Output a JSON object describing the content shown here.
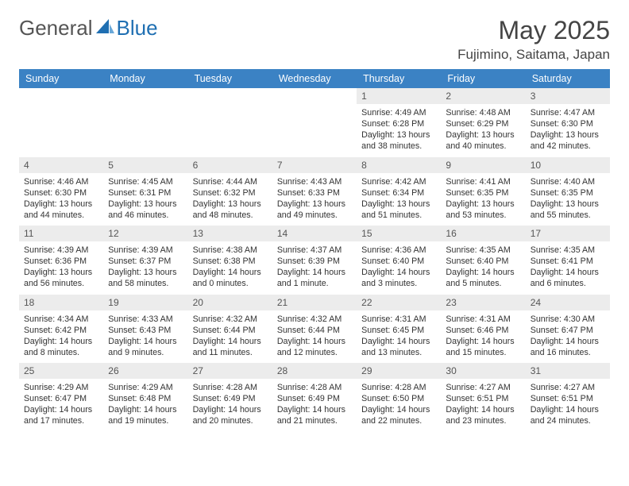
{
  "brand": {
    "word1": "General",
    "word2": "Blue"
  },
  "title": "May 2025",
  "location": "Fujimino, Saitama, Japan",
  "colors": {
    "header_bg": "#3b82c4",
    "header_text": "#ffffff",
    "daynum_bg": "#ececec",
    "body_text": "#333333",
    "title_text": "#444444",
    "page_bg": "#ffffff",
    "brand_blue": "#1f6fb2"
  },
  "typography": {
    "month_title_pt": 32,
    "location_pt": 17,
    "dow_pt": 12.5,
    "daynum_pt": 12,
    "daydata_pt": 10.7,
    "logo_pt": 26
  },
  "days_of_week": [
    "Sunday",
    "Monday",
    "Tuesday",
    "Wednesday",
    "Thursday",
    "Friday",
    "Saturday"
  ],
  "weeks": [
    [
      null,
      null,
      null,
      null,
      {
        "n": "1",
        "sr": "4:49 AM",
        "ss": "6:28 PM",
        "dl": "13 hours and 38 minutes."
      },
      {
        "n": "2",
        "sr": "4:48 AM",
        "ss": "6:29 PM",
        "dl": "13 hours and 40 minutes."
      },
      {
        "n": "3",
        "sr": "4:47 AM",
        "ss": "6:30 PM",
        "dl": "13 hours and 42 minutes."
      }
    ],
    [
      {
        "n": "4",
        "sr": "4:46 AM",
        "ss": "6:30 PM",
        "dl": "13 hours and 44 minutes."
      },
      {
        "n": "5",
        "sr": "4:45 AM",
        "ss": "6:31 PM",
        "dl": "13 hours and 46 minutes."
      },
      {
        "n": "6",
        "sr": "4:44 AM",
        "ss": "6:32 PM",
        "dl": "13 hours and 48 minutes."
      },
      {
        "n": "7",
        "sr": "4:43 AM",
        "ss": "6:33 PM",
        "dl": "13 hours and 49 minutes."
      },
      {
        "n": "8",
        "sr": "4:42 AM",
        "ss": "6:34 PM",
        "dl": "13 hours and 51 minutes."
      },
      {
        "n": "9",
        "sr": "4:41 AM",
        "ss": "6:35 PM",
        "dl": "13 hours and 53 minutes."
      },
      {
        "n": "10",
        "sr": "4:40 AM",
        "ss": "6:35 PM",
        "dl": "13 hours and 55 minutes."
      }
    ],
    [
      {
        "n": "11",
        "sr": "4:39 AM",
        "ss": "6:36 PM",
        "dl": "13 hours and 56 minutes."
      },
      {
        "n": "12",
        "sr": "4:39 AM",
        "ss": "6:37 PM",
        "dl": "13 hours and 58 minutes."
      },
      {
        "n": "13",
        "sr": "4:38 AM",
        "ss": "6:38 PM",
        "dl": "14 hours and 0 minutes."
      },
      {
        "n": "14",
        "sr": "4:37 AM",
        "ss": "6:39 PM",
        "dl": "14 hours and 1 minute."
      },
      {
        "n": "15",
        "sr": "4:36 AM",
        "ss": "6:40 PM",
        "dl": "14 hours and 3 minutes."
      },
      {
        "n": "16",
        "sr": "4:35 AM",
        "ss": "6:40 PM",
        "dl": "14 hours and 5 minutes."
      },
      {
        "n": "17",
        "sr": "4:35 AM",
        "ss": "6:41 PM",
        "dl": "14 hours and 6 minutes."
      }
    ],
    [
      {
        "n": "18",
        "sr": "4:34 AM",
        "ss": "6:42 PM",
        "dl": "14 hours and 8 minutes."
      },
      {
        "n": "19",
        "sr": "4:33 AM",
        "ss": "6:43 PM",
        "dl": "14 hours and 9 minutes."
      },
      {
        "n": "20",
        "sr": "4:32 AM",
        "ss": "6:44 PM",
        "dl": "14 hours and 11 minutes."
      },
      {
        "n": "21",
        "sr": "4:32 AM",
        "ss": "6:44 PM",
        "dl": "14 hours and 12 minutes."
      },
      {
        "n": "22",
        "sr": "4:31 AM",
        "ss": "6:45 PM",
        "dl": "14 hours and 13 minutes."
      },
      {
        "n": "23",
        "sr": "4:31 AM",
        "ss": "6:46 PM",
        "dl": "14 hours and 15 minutes."
      },
      {
        "n": "24",
        "sr": "4:30 AM",
        "ss": "6:47 PM",
        "dl": "14 hours and 16 minutes."
      }
    ],
    [
      {
        "n": "25",
        "sr": "4:29 AM",
        "ss": "6:47 PM",
        "dl": "14 hours and 17 minutes."
      },
      {
        "n": "26",
        "sr": "4:29 AM",
        "ss": "6:48 PM",
        "dl": "14 hours and 19 minutes."
      },
      {
        "n": "27",
        "sr": "4:28 AM",
        "ss": "6:49 PM",
        "dl": "14 hours and 20 minutes."
      },
      {
        "n": "28",
        "sr": "4:28 AM",
        "ss": "6:49 PM",
        "dl": "14 hours and 21 minutes."
      },
      {
        "n": "29",
        "sr": "4:28 AM",
        "ss": "6:50 PM",
        "dl": "14 hours and 22 minutes."
      },
      {
        "n": "30",
        "sr": "4:27 AM",
        "ss": "6:51 PM",
        "dl": "14 hours and 23 minutes."
      },
      {
        "n": "31",
        "sr": "4:27 AM",
        "ss": "6:51 PM",
        "dl": "14 hours and 24 minutes."
      }
    ]
  ],
  "labels": {
    "sunrise": "Sunrise:",
    "sunset": "Sunset:",
    "daylight": "Daylight:"
  }
}
